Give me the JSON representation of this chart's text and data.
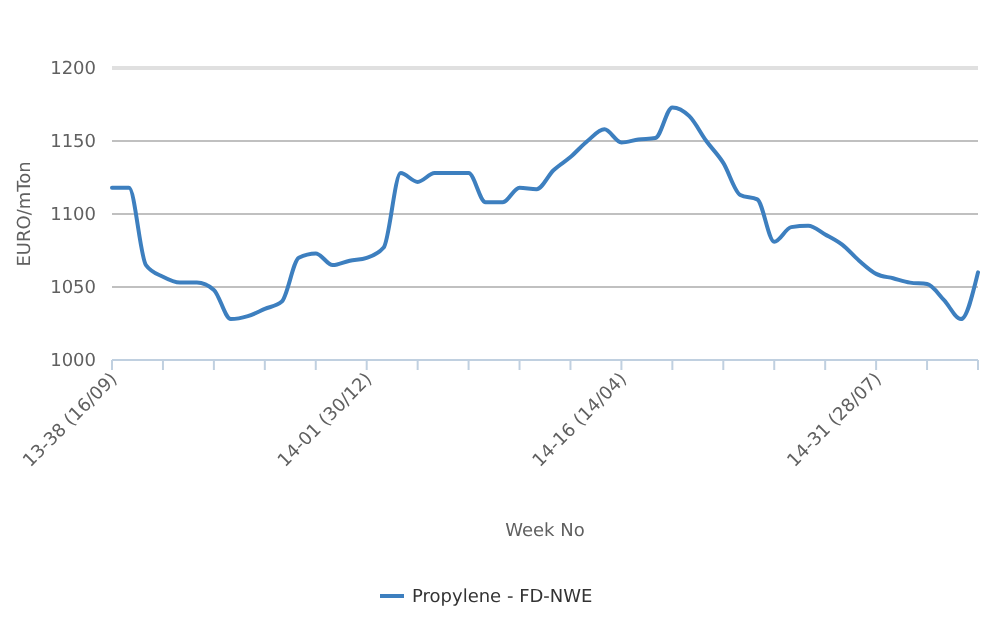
{
  "chart_data": {
    "type": "line",
    "xlabel": "Week No",
    "ylabel": "EURO/mTon",
    "categories": [
      "13-38 (16/09)",
      null,
      null,
      null,
      null,
      null,
      null,
      null,
      null,
      null,
      null,
      null,
      null,
      null,
      null,
      "14-01 (30/12)",
      null,
      null,
      null,
      null,
      null,
      null,
      null,
      null,
      null,
      null,
      null,
      null,
      null,
      null,
      "14-16 (14/04)",
      null,
      null,
      null,
      null,
      null,
      null,
      null,
      null,
      null,
      null,
      null,
      null,
      null,
      null,
      "14-31 (28/07)",
      null,
      null,
      null,
      null,
      null,
      null
    ],
    "series": [
      {
        "name": "Propylene - FD-NWE",
        "color": "#3d7fbf",
        "values": [
          1118,
          1118,
          1065,
          1057,
          1053,
          1053,
          1048,
          1028,
          1030,
          1035,
          1040,
          1070,
          1073,
          1065,
          1068,
          1070,
          1077,
          1128,
          1122,
          1128,
          1128,
          1128,
          1108,
          1108,
          1118,
          1117,
          1130,
          1139,
          1150,
          1158,
          1149,
          1151,
          1152,
          1173,
          1167,
          1150,
          1135,
          1113,
          1110,
          1081,
          1091,
          1092,
          1086,
          1079,
          1068,
          1059,
          1056,
          1053,
          1052,
          1041,
          1028,
          1060
        ]
      }
    ],
    "ylim": [
      1000,
      1200
    ],
    "yticks": [
      1000,
      1050,
      1100,
      1150,
      1200
    ],
    "grid": "y",
    "legend": "bottom",
    "marker": "none",
    "line_style": "solid"
  }
}
